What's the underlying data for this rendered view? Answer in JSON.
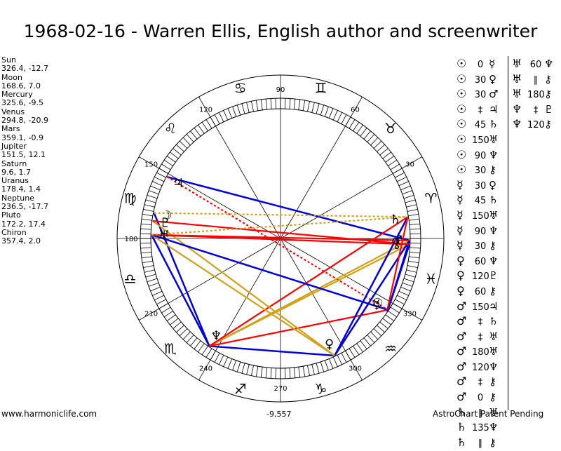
{
  "title": "1968-02-16 - Warren Ellis, English author and screenwriter",
  "planets": [
    {
      "name": "Sun",
      "coords": "326.4, -12.7"
    },
    {
      "name": "Moon",
      "coords": "168.6, 7.0"
    },
    {
      "name": "Mercury",
      "coords": "325.6, -9.5"
    },
    {
      "name": "Venus",
      "coords": "294.8, -20.9"
    },
    {
      "name": "Mars",
      "coords": "359.1, -0.9"
    },
    {
      "name": "Jupiter",
      "coords": "151.5, 12.1"
    },
    {
      "name": "Saturn",
      "coords": "9.6, 1.7"
    },
    {
      "name": "Uranus",
      "coords": "178.4, 1.4"
    },
    {
      "name": "Neptune",
      "coords": "236.5, -17.7"
    },
    {
      "name": "Pluto",
      "coords": "172.2, 17.4"
    },
    {
      "name": "Chiron",
      "coords": "357.4, 2.0"
    }
  ],
  "wheel": {
    "degree_labels": [
      "90",
      "60",
      "30",
      "120",
      "150",
      "180",
      "210",
      "240",
      "270",
      "300",
      "330"
    ],
    "zodiac": [
      "♈",
      "♉",
      "♊",
      "♋",
      "♌",
      "♍",
      "♎",
      "♏",
      "♐",
      "♑",
      "♒",
      "♓"
    ],
    "planet_glyphs": {
      "sun": "☉",
      "moon": "☽",
      "mercury": "☿",
      "venus": "♀",
      "mars": "♂",
      "jupiter": "♃",
      "saturn": "♄",
      "uranus": "♅",
      "neptune": "♆",
      "pluto": "♇",
      "chiron": "⚷"
    }
  },
  "aspects_col1": [
    {
      "p1": "☉",
      "angle": "0",
      "p2": "☿"
    },
    {
      "p1": "☉",
      "angle": "30",
      "p2": "♀"
    },
    {
      "p1": "☉",
      "angle": "30",
      "p2": "♂"
    },
    {
      "p1": "☉",
      "angle": "‡",
      "p2": "♃"
    },
    {
      "p1": "☉",
      "angle": "45",
      "p2": "♄"
    },
    {
      "p1": "☉",
      "angle": "150",
      "p2": "♅"
    },
    {
      "p1": "☉",
      "angle": "90",
      "p2": "♆"
    },
    {
      "p1": "☉",
      "angle": "30",
      "p2": "⚷"
    },
    {
      "p1": "☿",
      "angle": "30",
      "p2": "♀"
    },
    {
      "p1": "☿",
      "angle": "45",
      "p2": "♄"
    },
    {
      "p1": "☿",
      "angle": "150",
      "p2": "♅"
    },
    {
      "p1": "☿",
      "angle": "90",
      "p2": "♆"
    },
    {
      "p1": "☿",
      "angle": "30",
      "p2": "⚷"
    },
    {
      "p1": "♀",
      "angle": "60",
      "p2": "♆"
    },
    {
      "p1": "♀",
      "angle": "120",
      "p2": "♇"
    },
    {
      "p1": "♀",
      "angle": "60",
      "p2": "⚷"
    },
    {
      "p1": "♂",
      "angle": "150",
      "p2": "♃"
    },
    {
      "p1": "♂",
      "angle": "‡",
      "p2": "♄"
    },
    {
      "p1": "♂",
      "angle": "‡",
      "p2": "♅"
    },
    {
      "p1": "♂",
      "angle": "180",
      "p2": "♅"
    },
    {
      "p1": "♂",
      "angle": "120",
      "p2": "♆"
    },
    {
      "p1": "♂",
      "angle": "‡",
      "p2": "⚷"
    },
    {
      "p1": "♂",
      "angle": "0",
      "p2": "⚷"
    },
    {
      "p1": "♄",
      "angle": "∥",
      "p2": "♅"
    },
    {
      "p1": "♄",
      "angle": "135",
      "p2": "♆"
    },
    {
      "p1": "♄",
      "angle": "∥",
      "p2": "⚷"
    }
  ],
  "aspects_col2": [
    {
      "p1": "♅",
      "angle": "60",
      "p2": "♆"
    },
    {
      "p1": "♅",
      "angle": "∥",
      "p2": "⚷"
    },
    {
      "p1": "♅",
      "angle": "180",
      "p2": "⚷"
    },
    {
      "p1": "♆",
      "angle": "‡",
      "p2": "♇"
    },
    {
      "p1": "♆",
      "angle": "120",
      "p2": "⚷"
    }
  ],
  "footer": {
    "left": "www.harmoniclife.com",
    "center": "-9,557",
    "right": "AstroChart Patent Pending"
  },
  "colors": {
    "hard": "#0000dd",
    "soft": "#ff0000",
    "minor": "#d4a017"
  }
}
